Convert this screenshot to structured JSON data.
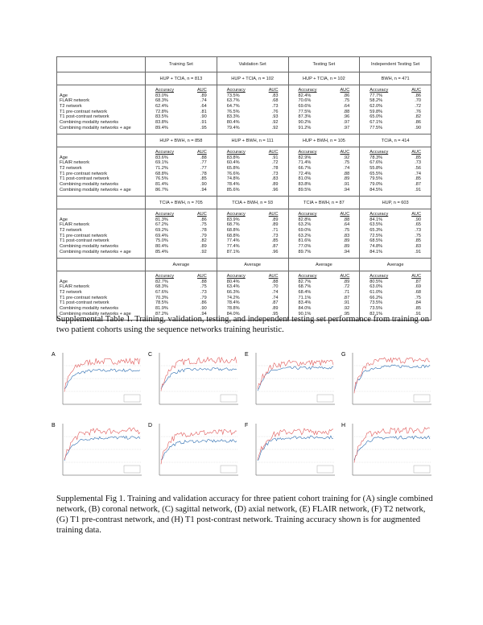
{
  "table": {
    "column_headers": [
      "Training Set",
      "Validation Set",
      "Testing Set",
      "Independent Testing Set"
    ],
    "metric_headers": [
      "Accuracy",
      "AUC"
    ],
    "row_labels": [
      "Age",
      "FLAIR network",
      "T2 network",
      "T1 pre-contrast network",
      "T1 post-contrast network",
      "Combining modality networks",
      "Combining modality networks + age"
    ],
    "blocks": [
      {
        "cohorts": [
          "HUP + TCIA, n = 813",
          "HUP + TCIA, n = 102",
          "HUP + TCIA, n = 102",
          "BWH, n = 471"
        ],
        "sets": [
          {
            "accuracy": [
              "83.0%",
              "68.3%",
              "62.4%",
              "72.8%",
              "83.5%",
              "83.8%",
              "89.4%"
            ],
            "auc": [
              ".89",
              ".74",
              ".64",
              ".81",
              ".90",
              ".91",
              ".95"
            ]
          },
          {
            "accuracy": [
              "73.5%",
              "63.7%",
              "64.7%",
              "76.5%",
              "83.3%",
              "80.4%",
              "79.4%"
            ],
            "auc": [
              ".83",
              ".68",
              ".73",
              ".76",
              ".93",
              ".92",
              ".92"
            ]
          },
          {
            "accuracy": [
              "82.4%",
              "70.6%",
              "69.6%",
              "77.5%",
              "87.3%",
              "90.2%",
              "91.2%"
            ],
            "auc": [
              ".86",
              ".75",
              ".64",
              ".88",
              ".96",
              ".97",
              ".97"
            ]
          },
          {
            "accuracy": [
              "77.7%",
              "58.2%",
              "62.0%",
              "59.8%",
              "65.0%",
              "67.1%",
              "77.5%"
            ],
            "auc": [
              ".86",
              ".70",
              ".72",
              ".76",
              ".82",
              ".86",
              ".90"
            ]
          }
        ]
      },
      {
        "cohorts": [
          "HUP + BWH, n = 858",
          "HUP + BWH, n = 111",
          "HUP + BWH, n = 105",
          "TCIA, n = 414"
        ],
        "sets": [
          {
            "accuracy": [
              "83.6%",
              "69.1%",
              "71.2%",
              "68.8%",
              "76.5%",
              "81.4%",
              "86.7%"
            ],
            "auc": [
              ".88",
              ".77",
              ".77",
              ".78",
              ".85",
              ".90",
              ".94"
            ]
          },
          {
            "accuracy": [
              "83.8%",
              "60.4%",
              "65.8%",
              "76.6%",
              "74.8%",
              "78.4%",
              "85.6%"
            ],
            "auc": [
              ".91",
              ".72",
              ".78",
              ".73",
              ".83",
              ".89",
              ".96"
            ]
          },
          {
            "accuracy": [
              "82.9%",
              "71.4%",
              "66.7%",
              "72.4%",
              "81.0%",
              "83.8%",
              "89.5%"
            ],
            "auc": [
              ".92",
              ".75",
              ".74",
              ".88",
              ".89",
              ".91",
              ".94"
            ]
          },
          {
            "accuracy": [
              "78.3%",
              "67.6%",
              "55.8%",
              "65.5%",
              "79.5%",
              "79.0%",
              "84.5%"
            ],
            "auc": [
              ".85",
              ".73",
              ".56",
              ".74",
              ".85",
              ".87",
              ".91"
            ]
          }
        ]
      },
      {
        "cohorts": [
          "TCIA + BWH, n = 705",
          "TCIA + BWH, n = 93",
          "TCIA + BWH, n = 87",
          "HUP, n = 603"
        ],
        "sets": [
          {
            "accuracy": [
              "81.3%",
              "67.2%",
              "69.2%",
              "69.4%",
              "75.0%",
              "80.4%",
              "85.4%"
            ],
            "auc": [
              ".86",
              ".75",
              ".78",
              ".79",
              ".82",
              ".89",
              ".92"
            ]
          },
          {
            "accuracy": [
              "83.9%",
              "68.7%",
              "68.8%",
              "68.8%",
              "77.4%",
              "77.4%",
              "87.1%"
            ],
            "auc": [
              ".89",
              ".89",
              ".71",
              ".73",
              ".85",
              ".87",
              ".96"
            ]
          },
          {
            "accuracy": [
              "82.8%",
              "63.2%",
              "69.0%",
              "63.2%",
              "81.6%",
              "77.0%",
              "89.7%"
            ],
            "auc": [
              ".88",
              ".64",
              ".75",
              ".83",
              ".89",
              ".89",
              ".94"
            ]
          },
          {
            "accuracy": [
              "84.1%",
              "63.5%",
              "65.3%",
              "72.5%",
              "68.5%",
              "74.8%",
              "84.1%"
            ],
            "auc": [
              ".90",
              ".65",
              ".73",
              ".75",
              ".85",
              ".83",
              ".91"
            ]
          }
        ]
      },
      {
        "cohorts": [
          "Average",
          "Average",
          "Average",
          "Average"
        ],
        "sets": [
          {
            "accuracy": [
              "82.7%",
              "68.3%",
              "67.6%",
              "70.3%",
              "78.5%",
              "81.9%",
              "87.2%"
            ],
            "auc": [
              ".88",
              ".75",
              ".73",
              ".79",
              ".86",
              ".90",
              ".94"
            ]
          },
          {
            "accuracy": [
              "80.4%",
              "63.4%",
              "66.3%",
              "74.2%",
              "78.4%",
              "78.8%",
              "84.0%"
            ],
            "auc": [
              ".88",
              ".70",
              ".74",
              ".74",
              ".87",
              ".89",
              ".95"
            ]
          },
          {
            "accuracy": [
              "82.7%",
              "68.7%",
              "68.4%",
              "71.1%",
              "83.4%",
              "84.0%",
              "90.1%"
            ],
            "auc": [
              ".89",
              ".72",
              ".71",
              ".87",
              ".91",
              ".92",
              ".95"
            ]
          },
          {
            "accuracy": [
              "80.5%",
              "63.0%",
              "61.0%",
              "66.2%",
              "73.5%",
              "73.5%",
              "82.1%"
            ],
            "auc": [
              ".87",
              ".69",
              ".68",
              ".75",
              ".84",
              ".85",
              ".91"
            ]
          }
        ]
      }
    ],
    "caption": "Supplemental Table 1. Training, validation, testing, and independent testing set performance from training on two patient cohorts using the sequence networks training heuristic."
  },
  "figure": {
    "panels": [
      "A",
      "C",
      "E",
      "G",
      "B",
      "D",
      "F",
      "H"
    ],
    "caption": "Supplemental Fig 1. Training and validation accuracy for three patient cohort training for (A) single combined network, (B) coronal network, (C) sagittal network, (D) axial network, (E) FLAIR network, (F) T2 network, (G) T1 pre-contrast network, and (H) T1 post-contrast network. Training accuracy shown is for augmented training data."
  }
}
